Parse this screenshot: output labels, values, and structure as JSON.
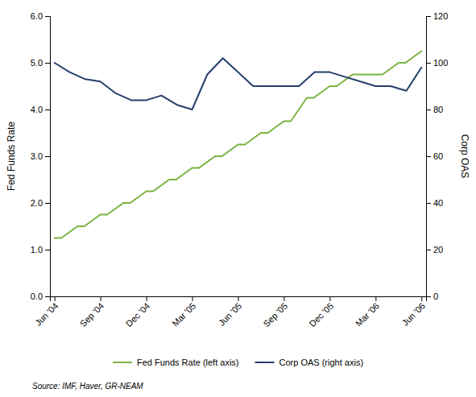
{
  "chart_data": {
    "type": "line",
    "xlim": [
      -0.1,
      8.1
    ],
    "xticks": [
      {
        "value": 0,
        "label": "Jun '04"
      },
      {
        "value": 1,
        "label": "Sep '04"
      },
      {
        "value": 2,
        "label": "Dec '04"
      },
      {
        "value": 3,
        "label": "Mar '05"
      },
      {
        "value": 4,
        "label": "Jun '05"
      },
      {
        "value": 5,
        "label": "Sep '05"
      },
      {
        "value": 6,
        "label": "Dec '05"
      },
      {
        "value": 7,
        "label": "Mar '06"
      },
      {
        "value": 8,
        "label": "Jun '06"
      }
    ],
    "ylim": [
      0.0,
      6.0
    ],
    "yticks": [
      {
        "value": 0.0,
        "label": "0.0"
      },
      {
        "value": 1.0,
        "label": "1.0"
      },
      {
        "value": 2.0,
        "label": "2.0"
      },
      {
        "value": 3.0,
        "label": "3.0"
      },
      {
        "value": 4.0,
        "label": "4.0"
      },
      {
        "value": 5.0,
        "label": "5.0"
      },
      {
        "value": 6.0,
        "label": "6.0"
      }
    ],
    "y2lim": [
      0,
      120
    ],
    "y2ticks": [
      0,
      20,
      40,
      60,
      80,
      100,
      120
    ],
    "ylabel": "Fed Funds Rate",
    "y2label": "Corp OAS",
    "annotations": [
      "Source: IMF, Haver, GR-NEAM"
    ],
    "legend": "bottom",
    "grid": false,
    "series": [
      {
        "name": "Fed Funds Rate (left axis)",
        "color": "#7ab240",
        "x": [
          0,
          0.15,
          0.5,
          0.65,
          1,
          1.15,
          1.5,
          1.65,
          2,
          2.15,
          2.5,
          2.65,
          3,
          3.15,
          3.5,
          3.65,
          4,
          4.15,
          4.5,
          4.65,
          5,
          5.15,
          5.5,
          5.65,
          6,
          6.15,
          6.5,
          6.65,
          7,
          7.15,
          7.5,
          7.65,
          8
        ],
        "values": [
          1.25,
          1.25,
          1.5,
          1.5,
          1.75,
          1.75,
          2.0,
          2.0,
          2.25,
          2.25,
          2.5,
          2.5,
          2.75,
          2.75,
          3.0,
          3.0,
          3.25,
          3.25,
          3.5,
          3.5,
          3.75,
          3.75,
          4.25,
          4.25,
          4.5,
          4.5,
          4.75,
          4.75,
          4.75,
          4.75,
          5.0,
          5.0,
          5.25
        ]
      },
      {
        "name": "Corp OAS (right axis)",
        "color": "#253f6b",
        "axis": "y2",
        "x": [
          0,
          0.33,
          0.67,
          1,
          1.33,
          1.67,
          2,
          2.33,
          2.67,
          3,
          3.33,
          3.67,
          4,
          4.33,
          4.67,
          5,
          5.33,
          5.67,
          6,
          6.33,
          6.67,
          7,
          7.33,
          7.67,
          8
        ],
        "values": [
          100,
          96,
          93,
          92,
          87,
          84,
          84,
          86,
          82,
          80,
          95,
          102,
          96,
          90,
          90,
          90,
          90,
          96,
          96,
          94,
          92,
          90,
          90,
          88,
          98
        ]
      }
    ]
  }
}
